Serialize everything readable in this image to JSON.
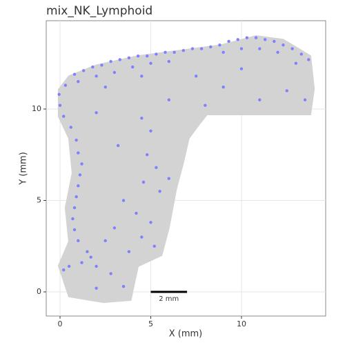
{
  "chart_data": {
    "type": "scatter",
    "title": "mix_NK_Lymphoid",
    "x_label": "X (mm)",
    "y_label": "Y (mm)",
    "xlim": [
      -0.76,
      14.64
    ],
    "ylim": [
      -1.32,
      14.83
    ],
    "xticks": [
      0,
      5,
      10
    ],
    "yticks": [
      0,
      5,
      10
    ],
    "grid": true,
    "series": [
      {
        "kind": "area",
        "color": "#d3d3d3",
        "x": [
          -0.08,
          0.49,
          2.0,
          4.3,
          6.6,
          8.9,
          10.8,
          12.3,
          13.8,
          14.0,
          13.8,
          8.1,
          7.7,
          7.1,
          6.8,
          6.4,
          6.0,
          5.6,
          4.3,
          4.1,
          3.9,
          2.4,
          0.49,
          -0.08,
          0.49,
          0.3,
          0.68,
          0.49,
          -0.08
        ],
        "y": [
          11.06,
          11.8,
          12.4,
          12.9,
          13.2,
          13.5,
          14.0,
          13.8,
          12.9,
          11.1,
          9.7,
          9.7,
          9.2,
          8.4,
          7.1,
          5.6,
          3.5,
          2.0,
          1.4,
          0.5,
          -0.45,
          -0.57,
          -0.26,
          1.43,
          2.75,
          4.6,
          6.5,
          8.4,
          9.6
        ]
      },
      {
        "kind": "points",
        "color": "#8080ff",
        "x": [
          0.3,
          0.8,
          1.3,
          1.8,
          2.3,
          2.8,
          3.3,
          3.8,
          4.3,
          4.8,
          5.3,
          5.8,
          6.3,
          6.8,
          7.3,
          7.8,
          8.3,
          8.8,
          9.3,
          9.8,
          10.3,
          10.8,
          11.3,
          11.8,
          12.3,
          12.8,
          13.3,
          13.7,
          1.0,
          2.0,
          3.0,
          4.0,
          5.0,
          6.0,
          9.0,
          10.0,
          11.0,
          12.0,
          13.0,
          2.5,
          4.5,
          -0.05,
          0.0,
          0.2,
          0.6,
          0.9,
          1.0,
          1.2,
          1.1,
          1.0,
          0.9,
          0.8,
          0.7,
          0.8,
          1.0,
          1.5,
          1.2,
          0.5,
          0.2,
          1.7,
          2.0,
          4.5,
          5.0,
          4.8,
          5.3,
          4.6,
          5.5,
          3.5,
          4.2,
          5.0,
          3.0,
          4.5,
          2.5,
          3.8,
          5.2,
          2.8,
          3.5,
          2.0,
          6.0,
          3.2,
          2.0,
          9.0,
          11.0,
          12.5,
          7.5,
          6.0,
          10.0,
          13.5,
          8.0
        ],
        "y": [
          11.3,
          11.9,
          12.1,
          12.3,
          12.4,
          12.6,
          12.7,
          12.8,
          12.9,
          12.9,
          13.0,
          13.1,
          13.1,
          13.2,
          13.3,
          13.3,
          13.4,
          13.5,
          13.7,
          13.8,
          13.9,
          13.9,
          13.8,
          13.7,
          13.5,
          13.3,
          13.0,
          12.7,
          11.5,
          11.8,
          12.0,
          12.3,
          12.5,
          12.6,
          13.1,
          13.3,
          13.3,
          13.1,
          12.5,
          11.2,
          11.8,
          10.8,
          10.2,
          9.6,
          9.0,
          8.3,
          7.6,
          7.0,
          6.4,
          5.8,
          5.2,
          4.6,
          4.0,
          3.4,
          2.8,
          2.2,
          1.6,
          1.4,
          1.2,
          1.9,
          1.4,
          9.5,
          8.8,
          7.5,
          6.8,
          6.0,
          5.5,
          5.0,
          4.3,
          3.8,
          3.5,
          3.0,
          2.8,
          2.2,
          2.5,
          1.0,
          0.3,
          0.2,
          6.2,
          8.0,
          9.8,
          11.2,
          10.5,
          11.0,
          11.8,
          10.5,
          12.2,
          10.5,
          10.2
        ]
      }
    ],
    "scale_bar": {
      "label": "2 mm",
      "x": [
        5,
        7
      ],
      "y": 0
    }
  }
}
